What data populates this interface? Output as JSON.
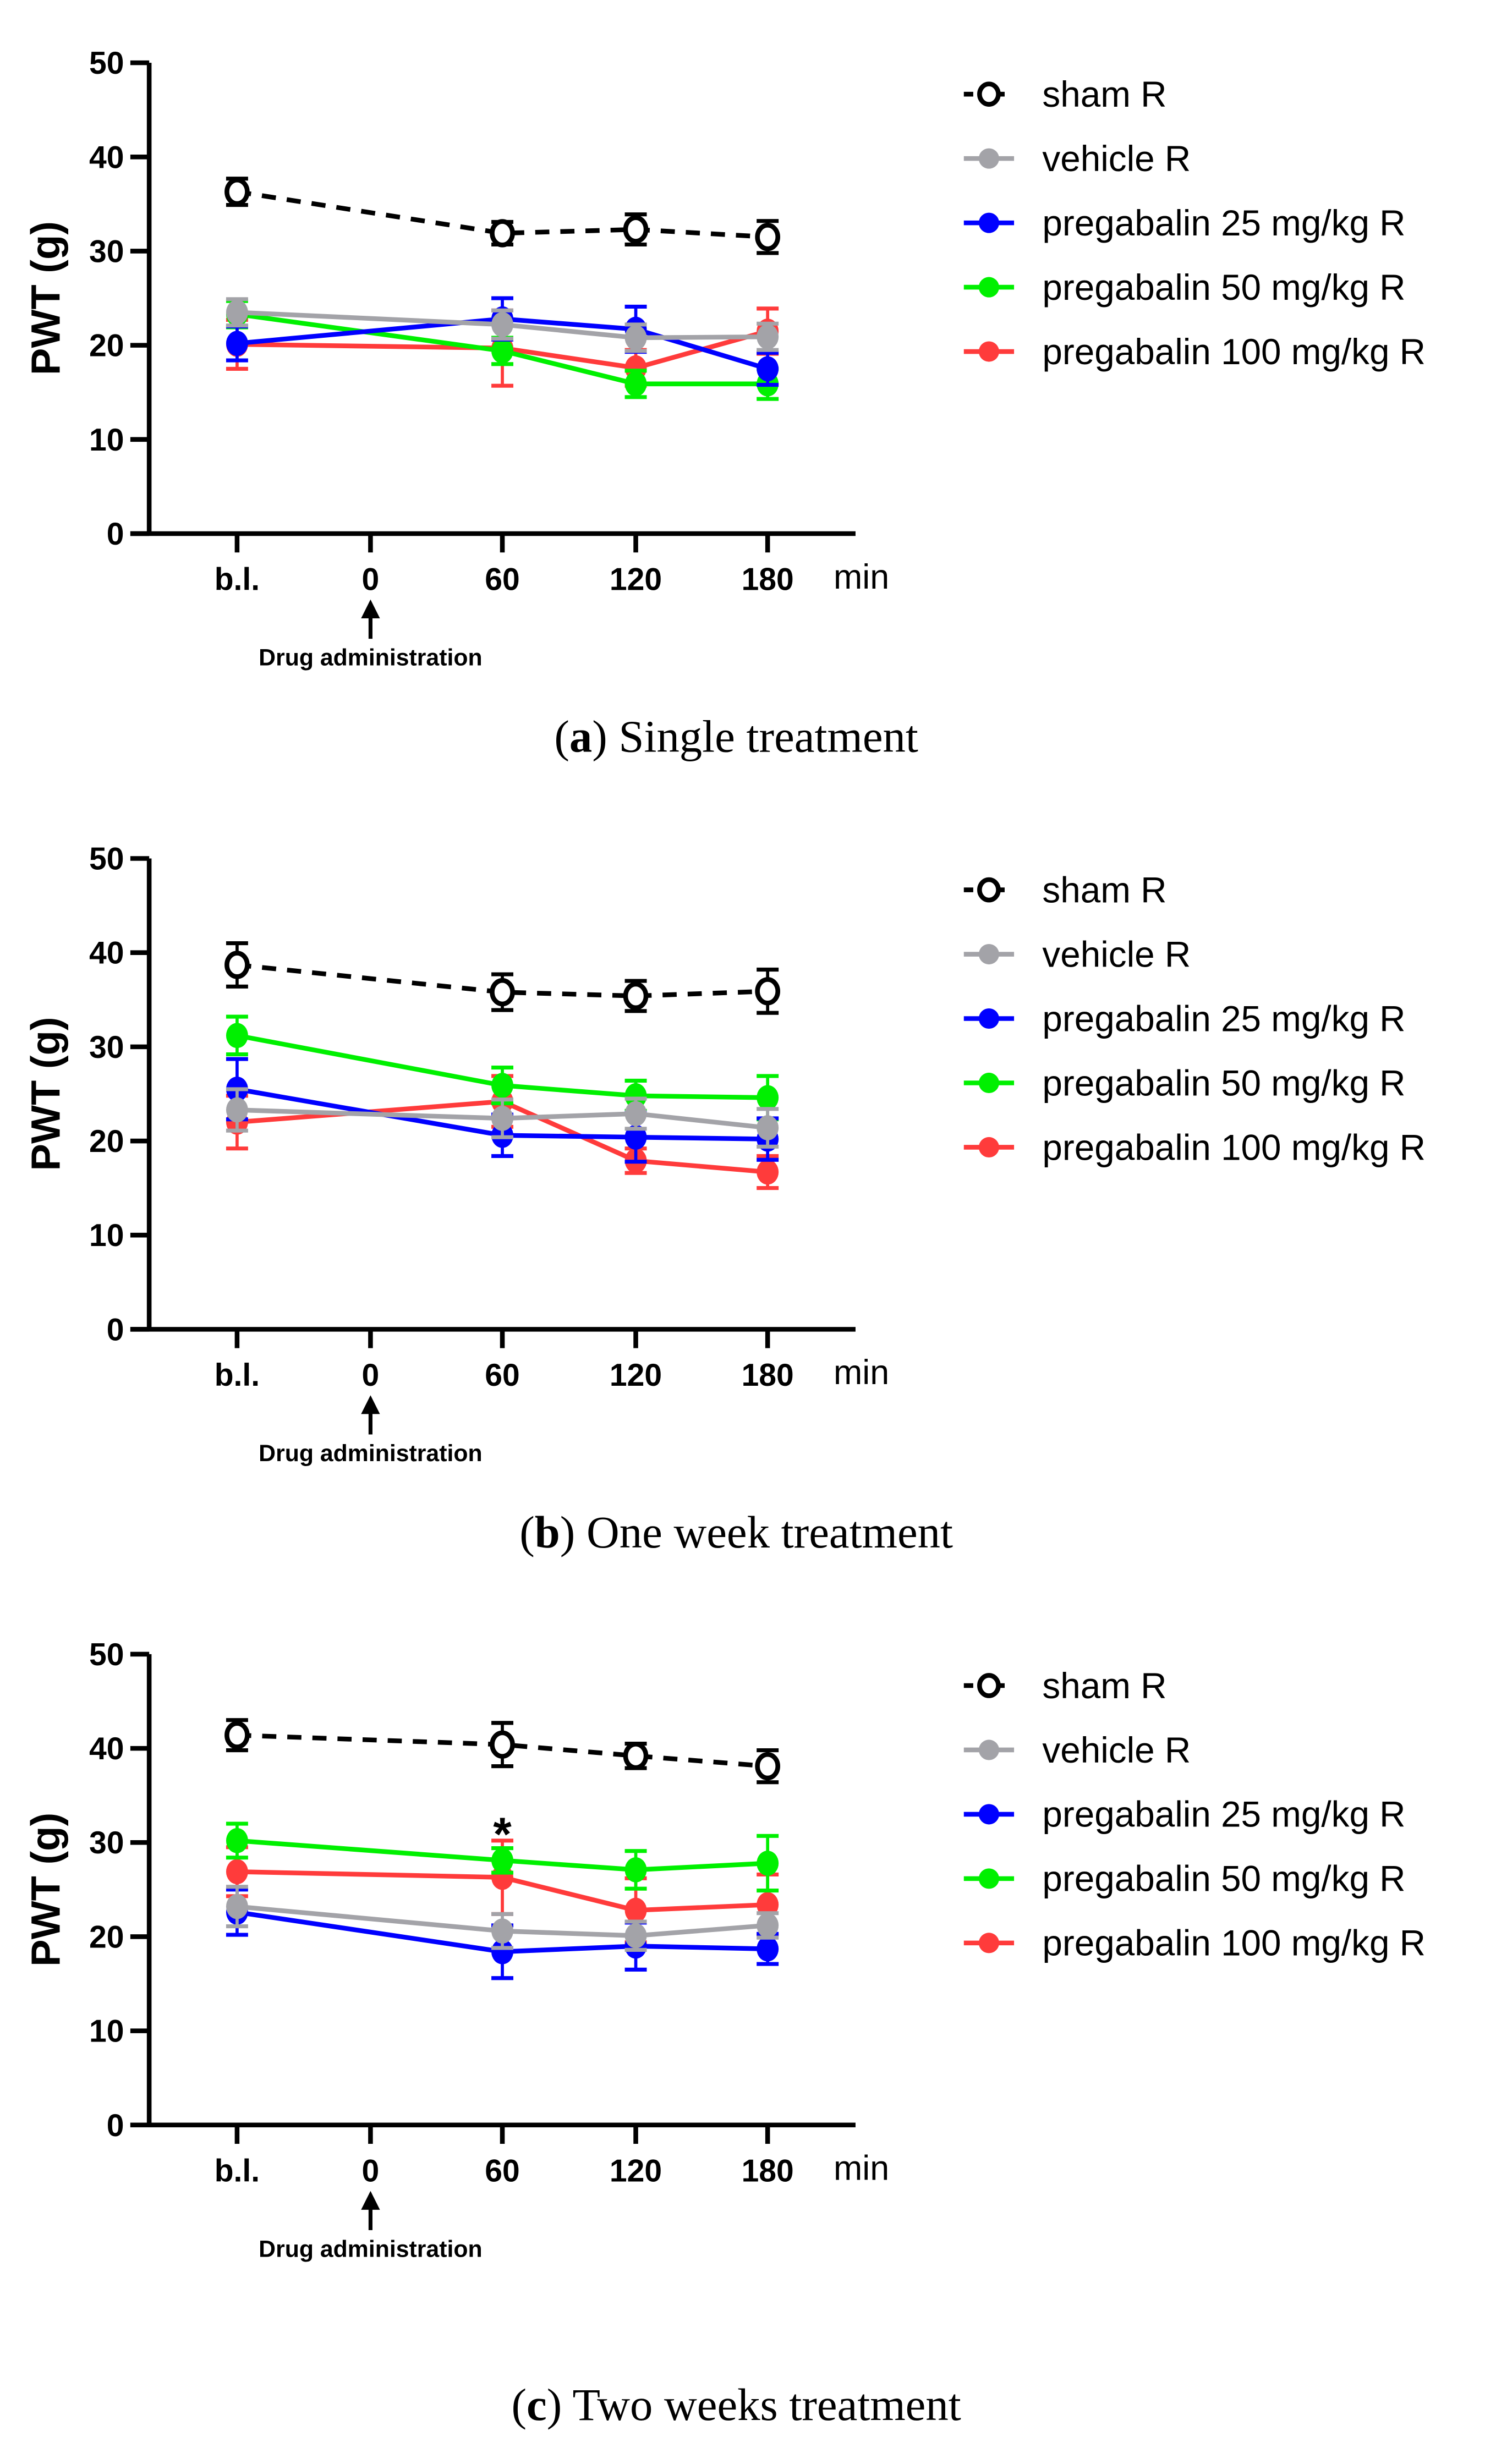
{
  "chart_data": [
    {
      "type": "line",
      "title": "Single treatment",
      "caption_letter": "a",
      "ylabel": "PWT (g)",
      "xlabel": "min",
      "ylim": [
        0,
        50
      ],
      "yticks": [
        "0",
        "10",
        "20",
        "30",
        "40",
        "50"
      ],
      "categories": [
        "b.l.",
        "0",
        "60",
        "120",
        "180"
      ],
      "annotation": "Drug administration",
      "series": [
        {
          "name": "sham R",
          "color": "#000000",
          "style": "dashed-open",
          "x": [
            "b.l.",
            "60",
            "120",
            "180"
          ],
          "values": [
            36.3,
            31.9,
            32.3,
            31.5
          ],
          "err": [
            1.4,
            1.2,
            1.6,
            1.7
          ]
        },
        {
          "name": "vehicle R",
          "color": "#a3a3a8",
          "style": "solid",
          "x": [
            "b.l.",
            "60",
            "120",
            "180"
          ],
          "values": [
            23.5,
            22.2,
            20.8,
            20.9
          ],
          "err": [
            1.4,
            1.5,
            1.4,
            1.4
          ]
        },
        {
          "name": "pregabalin 25 mg/kg R",
          "color": "#0000ff",
          "style": "solid",
          "x": [
            "b.l.",
            "60",
            "120",
            "180"
          ],
          "values": [
            20.2,
            22.8,
            21.7,
            17.5
          ],
          "err": [
            1.8,
            2.2,
            2.4,
            1.7
          ]
        },
        {
          "name": "pregabalin 50 mg/kg R",
          "color": "#00f000",
          "style": "solid",
          "x": [
            "b.l.",
            "60",
            "120",
            "180"
          ],
          "values": [
            23.3,
            19.4,
            15.9,
            15.9
          ],
          "err": [
            1.4,
            1.4,
            1.4,
            1.6
          ]
        },
        {
          "name": "pregabalin 100 mg/kg R",
          "color": "#ff3b3b",
          "style": "solid",
          "x": [
            "b.l.",
            "60",
            "120",
            "180"
          ],
          "values": [
            20.1,
            19.7,
            17.6,
            21.5
          ],
          "err": [
            2.6,
            4.0,
            1.9,
            2.4
          ]
        }
      ],
      "legend": "right"
    },
    {
      "type": "line",
      "title": "One week treatment",
      "caption_letter": "b",
      "ylabel": "PWT (g)",
      "xlabel": "min",
      "ylim": [
        0,
        50
      ],
      "yticks": [
        "0",
        "10",
        "20",
        "30",
        "40",
        "50"
      ],
      "categories": [
        "b.l.",
        "0",
        "60",
        "120",
        "180"
      ],
      "annotation": "Drug administration",
      "series": [
        {
          "name": "sham R",
          "color": "#000000",
          "style": "dashed-open",
          "x": [
            "b.l.",
            "60",
            "120",
            "180"
          ],
          "values": [
            38.7,
            35.8,
            35.4,
            35.9
          ],
          "err": [
            2.3,
            1.9,
            1.6,
            2.3
          ]
        },
        {
          "name": "vehicle R",
          "color": "#a3a3a8",
          "style": "solid",
          "x": [
            "b.l.",
            "60",
            "120",
            "180"
          ],
          "values": [
            23.3,
            22.4,
            22.9,
            21.4
          ],
          "err": [
            2.2,
            2.0,
            1.6,
            2.0
          ]
        },
        {
          "name": "pregabalin 25 mg/kg R",
          "color": "#0000ff",
          "style": "solid",
          "x": [
            "b.l.",
            "60",
            "120",
            "180"
          ],
          "values": [
            25.5,
            20.6,
            20.4,
            20.2
          ],
          "err": [
            3.2,
            2.2,
            2.6,
            2.2
          ]
        },
        {
          "name": "pregabalin 50 mg/kg R",
          "color": "#00f000",
          "style": "solid",
          "x": [
            "b.l.",
            "60",
            "120",
            "180"
          ],
          "values": [
            31.2,
            25.9,
            24.8,
            24.6
          ],
          "err": [
            2.0,
            1.9,
            1.6,
            2.3
          ]
        },
        {
          "name": "pregabalin 100 mg/kg R",
          "color": "#ff3b3b",
          "style": "solid",
          "x": [
            "b.l.",
            "60",
            "120",
            "180"
          ],
          "values": [
            22.0,
            24.2,
            17.9,
            16.7
          ],
          "err": [
            2.8,
            2.7,
            1.3,
            1.7
          ]
        }
      ],
      "legend": "right"
    },
    {
      "type": "line",
      "title": "Two weeks treatment",
      "caption_letter": "c",
      "ylabel": "PWT (g)",
      "xlabel": "min",
      "ylim": [
        0,
        50
      ],
      "yticks": [
        "0",
        "10",
        "20",
        "30",
        "40",
        "50"
      ],
      "categories": [
        "b.l.",
        "0",
        "60",
        "120",
        "180"
      ],
      "annotation": "Drug administration",
      "significance": {
        "label": "*",
        "x": "60"
      },
      "series": [
        {
          "name": "sham R",
          "color": "#000000",
          "style": "dashed-open",
          "x": [
            "b.l.",
            "60",
            "120",
            "180"
          ],
          "values": [
            41.4,
            40.4,
            39.2,
            38.1
          ],
          "err": [
            1.6,
            2.3,
            1.3,
            1.7
          ]
        },
        {
          "name": "vehicle R",
          "color": "#a3a3a8",
          "style": "solid",
          "x": [
            "b.l.",
            "60",
            "120",
            "180"
          ],
          "values": [
            23.2,
            20.6,
            20.1,
            21.2
          ],
          "err": [
            2.1,
            1.8,
            1.5,
            1.3
          ]
        },
        {
          "name": "pregabalin 25 mg/kg R",
          "color": "#0000ff",
          "style": "solid",
          "x": [
            "b.l.",
            "60",
            "120",
            "180"
          ],
          "values": [
            22.6,
            18.4,
            19.0,
            18.7
          ],
          "err": [
            2.4,
            2.8,
            2.5,
            1.6
          ]
        },
        {
          "name": "pregabalin 50 mg/kg R",
          "color": "#00f000",
          "style": "solid",
          "x": [
            "b.l.",
            "60",
            "120",
            "180"
          ],
          "values": [
            30.2,
            28.1,
            27.1,
            27.8
          ],
          "err": [
            1.8,
            1.3,
            2.0,
            2.9
          ]
        },
        {
          "name": "pregabalin 100 mg/kg R",
          "color": "#ff3b3b",
          "style": "solid",
          "x": [
            "b.l.",
            "60",
            "120",
            "180"
          ],
          "values": [
            26.9,
            26.3,
            22.8,
            23.4
          ],
          "err": [
            2.6,
            3.9,
            3.4,
            3.2
          ]
        }
      ],
      "legend": "right"
    }
  ]
}
